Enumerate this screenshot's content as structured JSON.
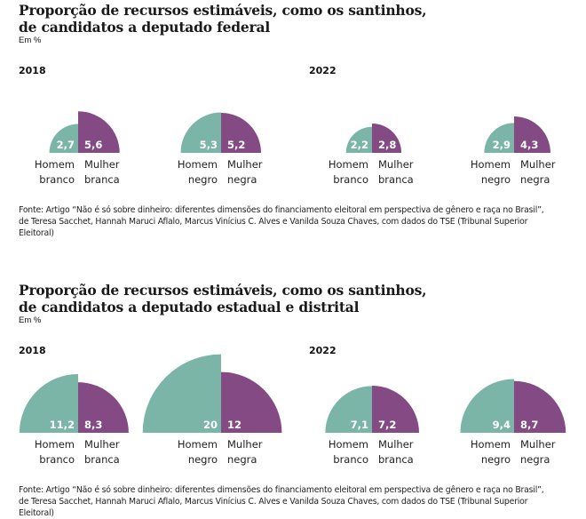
{
  "colors": {
    "homem": "#7bb5a8",
    "mulher": "#834a84"
  },
  "chart_data": [
    {
      "type": "semicircle-area",
      "title": "Proporção de recursos estimáveis, como os santinhos, de candidatos a deputado federal",
      "title_lines": [
        "Proporção de recursos estimáveis, como os santinhos,",
        "de candidatos a deputado federal"
      ],
      "unit": "Em %",
      "panels": [
        {
          "year": "2018",
          "pairs": [
            {
              "left": {
                "category": [
                  "Homem",
                  "branco"
                ],
                "value": 2.7,
                "label": "2,7"
              },
              "right": {
                "category": [
                  "Mulher",
                  "branca"
                ],
                "value": 5.6,
                "label": "5,6"
              }
            },
            {
              "left": {
                "category": [
                  "Homem",
                  "negro"
                ],
                "value": 5.3,
                "label": "5,3"
              },
              "right": {
                "category": [
                  "Mulher",
                  "negra"
                ],
                "value": 5.2,
                "label": "5,2"
              }
            }
          ]
        },
        {
          "year": "2022",
          "pairs": [
            {
              "left": {
                "category": [
                  "Homem",
                  "branco"
                ],
                "value": 2.2,
                "label": "2,2"
              },
              "right": {
                "category": [
                  "Mulher",
                  "branca"
                ],
                "value": 2.8,
                "label": "2,8"
              }
            },
            {
              "left": {
                "category": [
                  "Homem",
                  "negro"
                ],
                "value": 2.9,
                "label": "2,9"
              },
              "right": {
                "category": [
                  "Mulher",
                  "negra"
                ],
                "value": 4.3,
                "label": "4,3"
              }
            }
          ]
        }
      ],
      "source": "Fonte: Artigo “Não é só sobre dinheiro: diferentes dimensões do financiamento eleitoral em perspectiva de gênero e raça no Brasil”, de Teresa Sacchet, Hannah Maruci Aflalo, Marcus Vinícius C. Alves e Vanilda Souza Chaves, com dados do TSE (Tribunal Superior Eleitoral)"
    },
    {
      "type": "semicircle-area",
      "title": "Proporção de recursos estimáveis, como os santinhos, de candidatos a deputado estadual e distrital",
      "title_lines": [
        "Proporção de recursos estimáveis, como os santinhos,",
        "de candidatos a deputado estadual e distrital"
      ],
      "unit": "Em %",
      "panels": [
        {
          "year": "2018",
          "pairs": [
            {
              "left": {
                "category": [
                  "Homem",
                  "branco"
                ],
                "value": 11.2,
                "label": "11,2"
              },
              "right": {
                "category": [
                  "Mulher",
                  "branca"
                ],
                "value": 8.3,
                "label": "8,3"
              }
            },
            {
              "left": {
                "category": [
                  "Homem",
                  "negro"
                ],
                "value": 20,
                "label": "20"
              },
              "right": {
                "category": [
                  "Mulher",
                  "negra"
                ],
                "value": 12,
                "label": "12"
              }
            }
          ]
        },
        {
          "year": "2022",
          "pairs": [
            {
              "left": {
                "category": [
                  "Homem",
                  "branco"
                ],
                "value": 7.1,
                "label": "7,1"
              },
              "right": {
                "category": [
                  "Mulher",
                  "branca"
                ],
                "value": 7.2,
                "label": "7,2"
              }
            },
            {
              "left": {
                "category": [
                  "Homem",
                  "negro"
                ],
                "value": 9.4,
                "label": "9,4"
              },
              "right": {
                "category": [
                  "Mulher",
                  "negra"
                ],
                "value": 8.7,
                "label": "8,7"
              }
            }
          ]
        }
      ],
      "source": "Fonte: Artigo “Não é só sobre dinheiro: diferentes dimensões do financiamento eleitoral em perspectiva de gênero e raça no Brasil”, de Teresa Sacchet, Hannah Maruci Aflalo, Marcus Vinícius C. Alves e Vanilda Souza Chaves, com dados do TSE (Tribunal Superior Eleitoral)"
    }
  ]
}
